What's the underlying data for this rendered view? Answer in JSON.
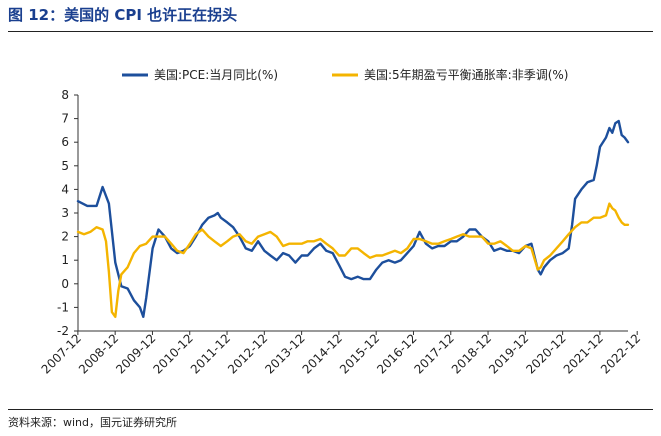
{
  "figure": {
    "title": "图 12：美国的 CPI 也许正在拐头",
    "source": "资料来源：wind，国元证券研究所"
  },
  "colors": {
    "series1": "#1d4f9c",
    "series2": "#f4b400"
  },
  "chart_data": {
    "type": "line",
    "title": "",
    "xlabel": "",
    "ylabel": "",
    "ylim": [
      -2,
      8
    ],
    "yticks": [
      "8",
      "7",
      "6",
      "5",
      "4",
      "3",
      "2",
      "1",
      "0",
      "-1",
      "-2"
    ],
    "xlim": [
      2007.92,
      2022.67
    ],
    "xticks": [
      "2007-12",
      "2008-12",
      "2009-12",
      "2010-12",
      "2011-12",
      "2012-12",
      "2013-12",
      "2014-12",
      "2015-12",
      "2016-12",
      "2017-12",
      "2018-12",
      "2019-12",
      "2020-12",
      "2021-12",
      "2022-12"
    ],
    "grid": false,
    "legend_position": "top",
    "series": [
      {
        "name": "美国:PCE:当月同比(%)",
        "color": "#1d4f9c",
        "points": [
          [
            2007.92,
            3.5
          ],
          [
            2008.17,
            3.3
          ],
          [
            2008.42,
            3.3
          ],
          [
            2008.58,
            4.1
          ],
          [
            2008.75,
            3.4
          ],
          [
            2008.92,
            0.9
          ],
          [
            2009.08,
            -0.1
          ],
          [
            2009.25,
            -0.2
          ],
          [
            2009.42,
            -0.7
          ],
          [
            2009.58,
            -1.0
          ],
          [
            2009.67,
            -1.4
          ],
          [
            2009.75,
            -0.6
          ],
          [
            2009.92,
            1.5
          ],
          [
            2010.08,
            2.3
          ],
          [
            2010.25,
            2.0
          ],
          [
            2010.42,
            1.5
          ],
          [
            2010.58,
            1.3
          ],
          [
            2010.75,
            1.4
          ],
          [
            2010.92,
            1.6
          ],
          [
            2011.08,
            2.0
          ],
          [
            2011.25,
            2.5
          ],
          [
            2011.42,
            2.8
          ],
          [
            2011.58,
            2.9
          ],
          [
            2011.67,
            3.0
          ],
          [
            2011.75,
            2.8
          ],
          [
            2011.92,
            2.6
          ],
          [
            2012.08,
            2.4
          ],
          [
            2012.25,
            2.0
          ],
          [
            2012.42,
            1.5
          ],
          [
            2012.58,
            1.4
          ],
          [
            2012.75,
            1.8
          ],
          [
            2012.92,
            1.4
          ],
          [
            2013.08,
            1.2
          ],
          [
            2013.25,
            1.0
          ],
          [
            2013.42,
            1.3
          ],
          [
            2013.58,
            1.2
          ],
          [
            2013.75,
            0.9
          ],
          [
            2013.92,
            1.2
          ],
          [
            2014.08,
            1.2
          ],
          [
            2014.25,
            1.5
          ],
          [
            2014.42,
            1.7
          ],
          [
            2014.58,
            1.4
          ],
          [
            2014.75,
            1.3
          ],
          [
            2014.92,
            0.8
          ],
          [
            2015.08,
            0.3
          ],
          [
            2015.25,
            0.2
          ],
          [
            2015.42,
            0.3
          ],
          [
            2015.58,
            0.2
          ],
          [
            2015.75,
            0.2
          ],
          [
            2015.92,
            0.6
          ],
          [
            2016.08,
            0.9
          ],
          [
            2016.25,
            1.0
          ],
          [
            2016.42,
            0.9
          ],
          [
            2016.58,
            1.0
          ],
          [
            2016.75,
            1.3
          ],
          [
            2016.92,
            1.6
          ],
          [
            2017.08,
            2.2
          ],
          [
            2017.25,
            1.7
          ],
          [
            2017.42,
            1.5
          ],
          [
            2017.58,
            1.6
          ],
          [
            2017.75,
            1.6
          ],
          [
            2017.92,
            1.8
          ],
          [
            2018.08,
            1.8
          ],
          [
            2018.25,
            2.0
          ],
          [
            2018.42,
            2.3
          ],
          [
            2018.58,
            2.3
          ],
          [
            2018.75,
            2.0
          ],
          [
            2018.92,
            1.8
          ],
          [
            2019.08,
            1.4
          ],
          [
            2019.25,
            1.5
          ],
          [
            2019.42,
            1.4
          ],
          [
            2019.58,
            1.4
          ],
          [
            2019.75,
            1.3
          ],
          [
            2019.92,
            1.6
          ],
          [
            2020.08,
            1.7
          ],
          [
            2020.25,
            0.6
          ],
          [
            2020.33,
            0.4
          ],
          [
            2020.42,
            0.7
          ],
          [
            2020.58,
            1.0
          ],
          [
            2020.75,
            1.2
          ],
          [
            2020.92,
            1.3
          ],
          [
            2021.08,
            1.5
          ],
          [
            2021.17,
            2.5
          ],
          [
            2021.25,
            3.6
          ],
          [
            2021.42,
            4.0
          ],
          [
            2021.58,
            4.3
          ],
          [
            2021.75,
            4.4
          ],
          [
            2021.83,
            5.0
          ],
          [
            2021.92,
            5.8
          ],
          [
            2022.08,
            6.2
          ],
          [
            2022.17,
            6.6
          ],
          [
            2022.25,
            6.4
          ],
          [
            2022.33,
            6.8
          ],
          [
            2022.42,
            6.9
          ],
          [
            2022.5,
            6.3
          ],
          [
            2022.58,
            6.2
          ],
          [
            2022.67,
            6.0
          ]
        ]
      },
      {
        "name": "美国:5年期盈亏平衡通胀率:非季调(%)",
        "color": "#f4b400",
        "points": [
          [
            2007.92,
            2.2
          ],
          [
            2008.08,
            2.1
          ],
          [
            2008.25,
            2.2
          ],
          [
            2008.42,
            2.4
          ],
          [
            2008.58,
            2.3
          ],
          [
            2008.67,
            1.8
          ],
          [
            2008.75,
            0.5
          ],
          [
            2008.83,
            -1.2
          ],
          [
            2008.92,
            -1.4
          ],
          [
            2009.0,
            -0.3
          ],
          [
            2009.08,
            0.4
          ],
          [
            2009.25,
            0.7
          ],
          [
            2009.42,
            1.3
          ],
          [
            2009.58,
            1.6
          ],
          [
            2009.75,
            1.7
          ],
          [
            2009.92,
            2.0
          ],
          [
            2010.08,
            2.0
          ],
          [
            2010.25,
            2.0
          ],
          [
            2010.42,
            1.7
          ],
          [
            2010.58,
            1.4
          ],
          [
            2010.75,
            1.3
          ],
          [
            2010.92,
            1.7
          ],
          [
            2011.08,
            2.1
          ],
          [
            2011.25,
            2.3
          ],
          [
            2011.42,
            2.0
          ],
          [
            2011.58,
            1.8
          ],
          [
            2011.75,
            1.6
          ],
          [
            2011.92,
            1.8
          ],
          [
            2012.08,
            2.0
          ],
          [
            2012.25,
            2.1
          ],
          [
            2012.42,
            1.8
          ],
          [
            2012.58,
            1.7
          ],
          [
            2012.75,
            2.0
          ],
          [
            2012.92,
            2.1
          ],
          [
            2013.08,
            2.2
          ],
          [
            2013.25,
            2.0
          ],
          [
            2013.42,
            1.6
          ],
          [
            2013.58,
            1.7
          ],
          [
            2013.75,
            1.7
          ],
          [
            2013.92,
            1.7
          ],
          [
            2014.08,
            1.8
          ],
          [
            2014.25,
            1.8
          ],
          [
            2014.42,
            1.9
          ],
          [
            2014.58,
            1.7
          ],
          [
            2014.75,
            1.5
          ],
          [
            2014.92,
            1.2
          ],
          [
            2015.08,
            1.2
          ],
          [
            2015.25,
            1.5
          ],
          [
            2015.42,
            1.5
          ],
          [
            2015.58,
            1.3
          ],
          [
            2015.75,
            1.1
          ],
          [
            2015.92,
            1.2
          ],
          [
            2016.08,
            1.2
          ],
          [
            2016.25,
            1.3
          ],
          [
            2016.42,
            1.4
          ],
          [
            2016.58,
            1.3
          ],
          [
            2016.75,
            1.5
          ],
          [
            2016.92,
            1.9
          ],
          [
            2017.08,
            1.9
          ],
          [
            2017.25,
            1.8
          ],
          [
            2017.42,
            1.7
          ],
          [
            2017.58,
            1.7
          ],
          [
            2017.75,
            1.8
          ],
          [
            2017.92,
            1.9
          ],
          [
            2018.08,
            2.0
          ],
          [
            2018.25,
            2.1
          ],
          [
            2018.42,
            2.0
          ],
          [
            2018.58,
            2.0
          ],
          [
            2018.75,
            2.0
          ],
          [
            2018.92,
            1.7
          ],
          [
            2019.08,
            1.7
          ],
          [
            2019.25,
            1.8
          ],
          [
            2019.42,
            1.6
          ],
          [
            2019.58,
            1.4
          ],
          [
            2019.75,
            1.4
          ],
          [
            2019.92,
            1.6
          ],
          [
            2020.08,
            1.5
          ],
          [
            2020.25,
            0.6
          ],
          [
            2020.33,
            0.7
          ],
          [
            2020.42,
            1.0
          ],
          [
            2020.58,
            1.2
          ],
          [
            2020.75,
            1.5
          ],
          [
            2020.92,
            1.8
          ],
          [
            2021.08,
            2.1
          ],
          [
            2021.25,
            2.4
          ],
          [
            2021.42,
            2.6
          ],
          [
            2021.58,
            2.6
          ],
          [
            2021.75,
            2.8
          ],
          [
            2021.92,
            2.8
          ],
          [
            2022.08,
            2.9
          ],
          [
            2022.17,
            3.4
          ],
          [
            2022.25,
            3.2
          ],
          [
            2022.33,
            3.1
          ],
          [
            2022.42,
            2.8
          ],
          [
            2022.5,
            2.6
          ],
          [
            2022.58,
            2.5
          ],
          [
            2022.67,
            2.5
          ]
        ]
      }
    ]
  }
}
